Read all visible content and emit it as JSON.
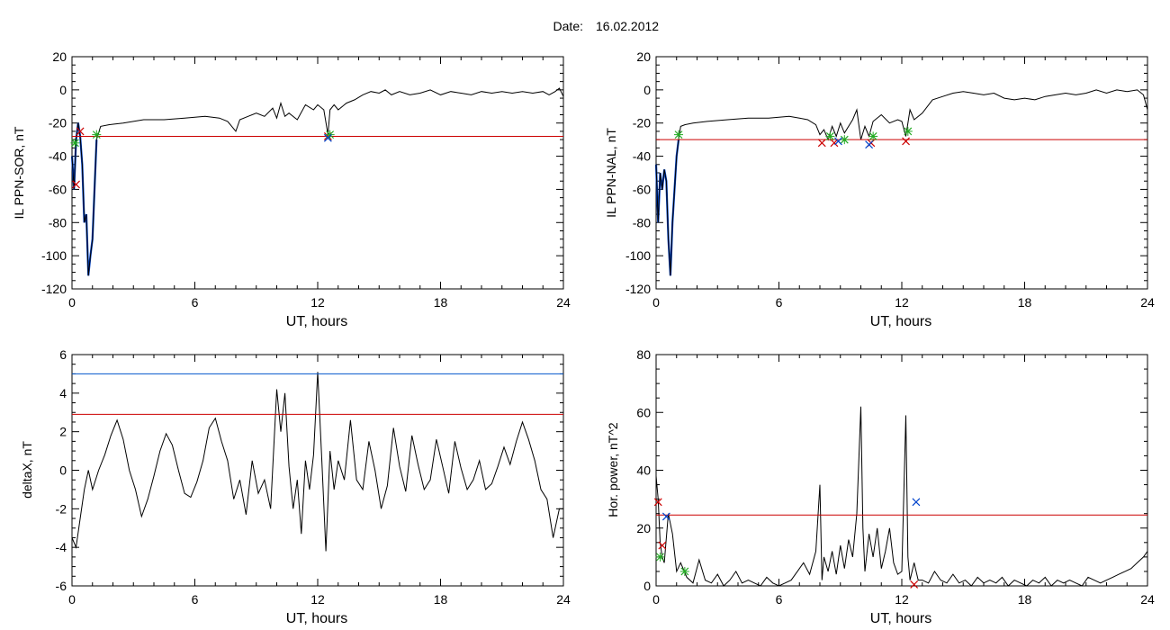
{
  "header": {
    "date_label": "Date:",
    "date_value": "16.02.2012"
  },
  "colors": {
    "trace": "#000000",
    "threshold": "#cc0000",
    "upper_threshold": "#0055cc",
    "substorm_fill": "#0044cc",
    "marker_red": "#cc0000",
    "marker_green": "#22aa22",
    "marker_blue": "#0044cc"
  },
  "chart_data": [
    {
      "id": "il-sor",
      "type": "line",
      "xlabel": "UT, hours",
      "ylabel": "IL PPN-SOR, nT",
      "xlim": [
        0,
        24
      ],
      "ylim": [
        -120,
        20
      ],
      "xticks": [
        0,
        6,
        12,
        18,
        24
      ],
      "yticks": [
        -120,
        -100,
        -80,
        -60,
        -40,
        -20,
        0,
        20
      ],
      "grid": false,
      "series": [
        {
          "x": [
            0,
            0.1,
            0.2,
            0.3,
            0.4,
            0.5,
            0.6,
            0.7,
            0.8,
            0.9,
            1.0,
            1.1,
            1.2,
            1.4,
            1.8,
            2.5,
            3.5,
            4.5,
            5.5,
            6.5,
            7.2,
            7.6,
            7.8,
            8.0,
            8.2,
            8.6,
            9.0,
            9.4,
            9.8,
            10.0,
            10.2,
            10.4,
            10.6,
            11.0,
            11.4,
            11.8,
            12.0,
            12.3,
            12.5,
            12.6,
            12.8,
            13.0,
            13.4,
            13.8,
            14.2,
            14.6,
            15.0,
            15.3,
            15.6,
            16.0,
            16.5,
            17.0,
            17.5,
            18.0,
            18.5,
            19.0,
            19.5,
            20.0,
            20.5,
            21.0,
            21.5,
            22.0,
            22.5,
            23.0,
            23.3,
            23.6,
            23.8,
            24.0
          ],
          "y": [
            -40,
            -60,
            -30,
            -20,
            -28,
            -45,
            -80,
            -75,
            -112,
            -100,
            -90,
            -60,
            -30,
            -22,
            -21,
            -20,
            -18,
            -18,
            -17,
            -16,
            -17,
            -19,
            -22,
            -25,
            -18,
            -16,
            -14,
            -16,
            -11,
            -17,
            -8,
            -16,
            -14,
            -18,
            -9,
            -12,
            -9,
            -12,
            -27,
            -12,
            -9,
            -12,
            -8,
            -6,
            -3,
            -1,
            -2,
            0,
            -3,
            -1,
            -3,
            -2,
            0,
            -3,
            -1,
            -2,
            -3,
            -1,
            -2,
            -1,
            -2,
            -1,
            -2,
            -1,
            -3,
            -1,
            1,
            -4
          ]
        }
      ],
      "threshold": -28,
      "markers": [
        {
          "x": 0.2,
          "y": -57,
          "color": "red"
        },
        {
          "x": 0.4,
          "y": -25,
          "color": "red"
        },
        {
          "x": 12.5,
          "y": -28,
          "color": "red"
        },
        {
          "x": 0.15,
          "y": -32,
          "color": "green"
        },
        {
          "x": 1.2,
          "y": -27,
          "color": "green"
        },
        {
          "x": 12.6,
          "y": -27,
          "color": "green"
        },
        {
          "x": 12.5,
          "y": -29,
          "color": "blue"
        }
      ],
      "substorm": [
        0.0,
        1.2
      ]
    },
    {
      "id": "il-nal",
      "type": "line",
      "xlabel": "UT, hours",
      "ylabel": "IL PPN-NAL, nT",
      "xlim": [
        0,
        24
      ],
      "ylim": [
        -120,
        20
      ],
      "xticks": [
        0,
        6,
        12,
        18,
        24
      ],
      "yticks": [
        -120,
        -100,
        -80,
        -60,
        -40,
        -20,
        0,
        20
      ],
      "grid": false,
      "series": [
        {
          "x": [
            0,
            0.1,
            0.2,
            0.3,
            0.4,
            0.5,
            0.6,
            0.7,
            0.8,
            0.9,
            1.0,
            1.1,
            1.2,
            1.4,
            1.8,
            2.5,
            3.5,
            4.5,
            5.5,
            6.5,
            7.0,
            7.4,
            7.8,
            8.0,
            8.2,
            8.4,
            8.6,
            8.8,
            9.0,
            9.2,
            9.6,
            9.8,
            10.0,
            10.2,
            10.4,
            10.6,
            11.0,
            11.4,
            11.8,
            12.0,
            12.2,
            12.4,
            12.6,
            13.0,
            13.5,
            14.0,
            14.5,
            15.0,
            15.5,
            16.0,
            16.5,
            17.0,
            17.5,
            18.0,
            18.5,
            19.0,
            19.5,
            20.0,
            20.5,
            21.0,
            21.5,
            22.0,
            22.5,
            23.0,
            23.5,
            23.8,
            24.0
          ],
          "y": [
            -45,
            -80,
            -50,
            -60,
            -48,
            -55,
            -90,
            -112,
            -80,
            -60,
            -40,
            -30,
            -22,
            -21,
            -20,
            -19,
            -18,
            -17,
            -17,
            -16,
            -17,
            -18,
            -21,
            -27,
            -24,
            -30,
            -22,
            -28,
            -20,
            -26,
            -18,
            -12,
            -30,
            -22,
            -28,
            -19,
            -15,
            -20,
            -18,
            -19,
            -28,
            -12,
            -18,
            -14,
            -6,
            -4,
            -2,
            -1,
            -2,
            -3,
            -2,
            -5,
            -6,
            -5,
            -6,
            -4,
            -3,
            -2,
            -3,
            -2,
            0,
            -2,
            0,
            -1,
            0,
            -3,
            -12
          ]
        }
      ],
      "threshold": -30,
      "markers": [
        {
          "x": 8.1,
          "y": -32,
          "color": "red"
        },
        {
          "x": 8.7,
          "y": -32,
          "color": "red"
        },
        {
          "x": 10.5,
          "y": -32,
          "color": "red"
        },
        {
          "x": 12.2,
          "y": -31,
          "color": "red"
        },
        {
          "x": 1.1,
          "y": -27,
          "color": "green"
        },
        {
          "x": 8.5,
          "y": -28,
          "color": "green"
        },
        {
          "x": 9.2,
          "y": -30,
          "color": "green"
        },
        {
          "x": 10.6,
          "y": -28,
          "color": "green"
        },
        {
          "x": 12.3,
          "y": -25,
          "color": "green"
        },
        {
          "x": 8.9,
          "y": -31,
          "color": "blue"
        },
        {
          "x": 10.4,
          "y": -33,
          "color": "blue"
        }
      ],
      "substorm": [
        0.0,
        1.1
      ]
    },
    {
      "id": "deltax",
      "type": "line",
      "xlabel": "UT, hours",
      "ylabel": "deltaX, nT",
      "xlim": [
        0,
        24
      ],
      "ylim": [
        -6,
        6
      ],
      "xticks": [
        0,
        6,
        12,
        18,
        24
      ],
      "yticks": [
        -6,
        -4,
        -2,
        0,
        2,
        4,
        6
      ],
      "grid": false,
      "series": [
        {
          "x": [
            0,
            0.2,
            0.4,
            0.6,
            0.8,
            1.0,
            1.3,
            1.6,
            1.9,
            2.2,
            2.5,
            2.8,
            3.1,
            3.4,
            3.7,
            4.0,
            4.3,
            4.6,
            4.9,
            5.2,
            5.5,
            5.8,
            6.1,
            6.4,
            6.7,
            7.0,
            7.3,
            7.6,
            7.9,
            8.2,
            8.5,
            8.8,
            9.1,
            9.4,
            9.7,
            10.0,
            10.2,
            10.4,
            10.6,
            10.8,
            11.0,
            11.2,
            11.4,
            11.6,
            11.8,
            12.0,
            12.2,
            12.4,
            12.6,
            12.8,
            13.0,
            13.3,
            13.6,
            13.9,
            14.2,
            14.5,
            14.8,
            15.1,
            15.4,
            15.7,
            16.0,
            16.3,
            16.6,
            16.9,
            17.2,
            17.5,
            17.8,
            18.1,
            18.4,
            18.7,
            19.0,
            19.3,
            19.6,
            19.9,
            20.2,
            20.5,
            20.8,
            21.1,
            21.4,
            21.7,
            22.0,
            22.3,
            22.6,
            22.9,
            23.2,
            23.5,
            23.8,
            24.0
          ],
          "y": [
            -3.5,
            -4,
            -2.5,
            -1,
            0,
            -1,
            0,
            0.8,
            1.8,
            2.6,
            1.6,
            0,
            -1,
            -2.4,
            -1.5,
            -0.3,
            1,
            1.9,
            1.3,
            0,
            -1.2,
            -1.4,
            -0.6,
            0.5,
            2.2,
            2.7,
            1.5,
            0.5,
            -1.5,
            -0.5,
            -2.3,
            0.5,
            -1.2,
            -0.5,
            -2,
            4.2,
            2,
            4,
            0.2,
            -2,
            -0.5,
            -3.3,
            0.5,
            -1,
            0.8,
            5.1,
            0.5,
            -4.2,
            1,
            -1,
            0.5,
            -0.5,
            2.6,
            -0.5,
            -1,
            1.5,
            0,
            -2,
            -0.8,
            2.2,
            0.2,
            -1.1,
            1.8,
            0.3,
            -1,
            -0.5,
            1.6,
            0.2,
            -1.2,
            1.5,
            0.1,
            -1,
            -0.5,
            0.5,
            -1,
            -0.7,
            0.2,
            1.2,
            0.3,
            1.5,
            2.5,
            1.6,
            0.5,
            -1,
            -1.5,
            -3.5,
            -2,
            -2
          ]
        }
      ],
      "threshold": 2.9,
      "upper_threshold": 5.0,
      "markers": []
    },
    {
      "id": "hor-power",
      "type": "line",
      "xlabel": "UT, hours",
      "ylabel": "Hor. power, nT^2",
      "xlim": [
        0,
        24
      ],
      "ylim": [
        0,
        80
      ],
      "xticks": [
        0,
        6,
        12,
        18,
        24
      ],
      "yticks": [
        0,
        20,
        40,
        60,
        80
      ],
      "grid": false,
      "series": [
        {
          "x": [
            0,
            0.1,
            0.2,
            0.3,
            0.4,
            0.6,
            0.8,
            1.0,
            1.2,
            1.5,
            1.8,
            2.1,
            2.4,
            2.7,
            3.0,
            3.3,
            3.6,
            3.9,
            4.2,
            4.5,
            4.8,
            5.1,
            5.4,
            5.7,
            6.0,
            6.3,
            6.6,
            6.9,
            7.2,
            7.5,
            7.8,
            8.0,
            8.1,
            8.2,
            8.4,
            8.6,
            8.8,
            9.0,
            9.2,
            9.4,
            9.6,
            9.8,
            10.0,
            10.1,
            10.2,
            10.4,
            10.6,
            10.8,
            11.0,
            11.2,
            11.4,
            11.6,
            11.8,
            12.0,
            12.2,
            12.3,
            12.4,
            12.6,
            12.8,
            13.0,
            13.3,
            13.6,
            13.9,
            14.2,
            14.5,
            14.8,
            15.1,
            15.4,
            15.7,
            16.0,
            16.3,
            16.6,
            16.9,
            17.2,
            17.5,
            17.8,
            18.1,
            18.4,
            18.7,
            19.0,
            19.3,
            19.6,
            19.9,
            20.2,
            20.5,
            20.8,
            21.1,
            21.4,
            21.7,
            22.0,
            22.3,
            22.6,
            22.9,
            23.2,
            23.5,
            23.8,
            24.0
          ],
          "y": [
            38,
            30,
            15,
            10,
            8,
            25,
            18,
            5,
            8,
            3,
            1,
            9,
            2,
            1,
            4,
            0,
            2,
            5,
            1,
            2,
            1,
            0,
            3,
            1,
            0,
            1,
            2,
            5,
            8,
            4,
            12,
            35,
            2,
            10,
            5,
            12,
            4,
            14,
            6,
            16,
            10,
            25,
            62,
            20,
            5,
            18,
            10,
            20,
            6,
            12,
            20,
            8,
            4,
            5,
            59,
            10,
            2,
            8,
            2,
            2,
            1,
            5,
            2,
            1,
            4,
            1,
            2,
            0,
            3,
            1,
            2,
            1,
            3,
            0,
            2,
            1,
            0,
            2,
            1,
            3,
            0,
            2,
            1,
            2,
            1,
            0,
            3,
            2,
            1,
            2,
            3,
            4,
            5,
            6,
            8,
            10,
            12
          ]
        }
      ],
      "threshold": 24.5,
      "markers": [
        {
          "x": 0.1,
          "y": 29,
          "color": "red"
        },
        {
          "x": 0.3,
          "y": 14,
          "color": "red"
        },
        {
          "x": 12.6,
          "y": 0.5,
          "color": "red"
        },
        {
          "x": 0.2,
          "y": 10,
          "color": "green"
        },
        {
          "x": 1.4,
          "y": 5,
          "color": "green"
        },
        {
          "x": 0.5,
          "y": 24,
          "color": "blue"
        },
        {
          "x": 12.7,
          "y": 29,
          "color": "blue"
        }
      ]
    }
  ]
}
